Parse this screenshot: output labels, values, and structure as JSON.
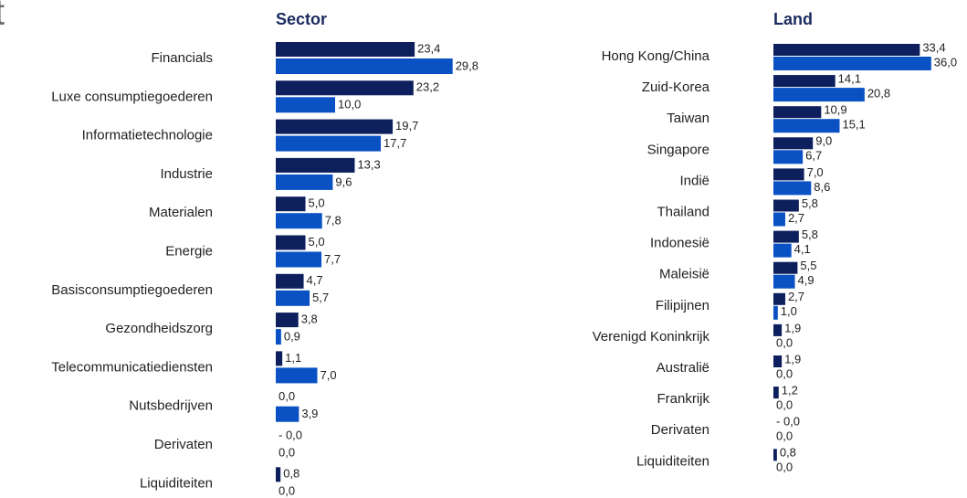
{
  "header": {
    "title": "t"
  },
  "chart_data": [
    {
      "type": "bar",
      "orientation": "horizontal",
      "title": "Sector",
      "categories": [
        "Financials",
        "Luxe consumptiegoederen",
        "Informatietechnologie",
        "Industrie",
        "Materialen",
        "Energie",
        "Basisconsumptiegoederen",
        "Gezondheidszorg",
        "Telecommunicatiediensten",
        "Nutsbedrijven",
        "Derivaten",
        "Liquiditeiten"
      ],
      "series": [
        {
          "color": "#0d1f5c",
          "values": [
            23.4,
            23.2,
            19.7,
            13.3,
            5.0,
            5.0,
            4.7,
            3.8,
            1.1,
            0.0,
            0,
            0.8
          ],
          "value_labels": [
            "23,4",
            "23,2",
            "19,7",
            "13,3",
            "5,0",
            "5,0",
            "4,7",
            "3,8",
            "1,1",
            "0,0",
            "- 0,0",
            "0,8"
          ]
        },
        {
          "color": "#0a52c4",
          "values": [
            29.8,
            10.0,
            17.7,
            9.6,
            7.8,
            7.7,
            5.7,
            0.9,
            7.0,
            3.9,
            0.0,
            0.0
          ],
          "value_labels": [
            "29,8",
            "10,0",
            "17,7",
            "9,6",
            "7,8",
            "7,7",
            "5,7",
            "0,9",
            "7,0",
            "3,9",
            "0,0",
            "0,0"
          ]
        }
      ]
    },
    {
      "type": "bar",
      "orientation": "horizontal",
      "title": "Land",
      "categories": [
        "Hong Kong/China",
        "Zuid-Korea",
        "Taiwan",
        "Singapore",
        "Indië",
        "Thailand",
        "Indonesië",
        "Maleisië",
        "Filipijnen",
        "Verenigd Koninkrijk",
        "Australië",
        "Frankrijk",
        "Derivaten",
        "Liquiditeiten"
      ],
      "series": [
        {
          "color": "#0d1f5c",
          "values": [
            33.4,
            14.1,
            10.9,
            9.0,
            7.0,
            5.8,
            5.8,
            5.5,
            2.7,
            1.9,
            1.9,
            1.2,
            0,
            0.8
          ],
          "value_labels": [
            "33,4",
            "14,1",
            "10,9",
            "9,0",
            "7,0",
            "5,8",
            "5,8",
            "5,5",
            "2,7",
            "1,9",
            "1,9",
            "1,2",
            "- 0,0",
            "0,8"
          ]
        },
        {
          "color": "#0a52c4",
          "values": [
            36.0,
            20.8,
            15.1,
            6.7,
            8.6,
            2.7,
            4.1,
            4.9,
            1.0,
            0.0,
            0.0,
            0.0,
            0.0,
            0.0
          ],
          "value_labels": [
            "36,0",
            "20,8",
            "15,1",
            "6,7",
            "8,6",
            "2,7",
            "4,1",
            "4,9",
            "1,0",
            "0,0",
            "0,0",
            "0,0",
            "0,0",
            "0,0"
          ]
        }
      ]
    }
  ]
}
